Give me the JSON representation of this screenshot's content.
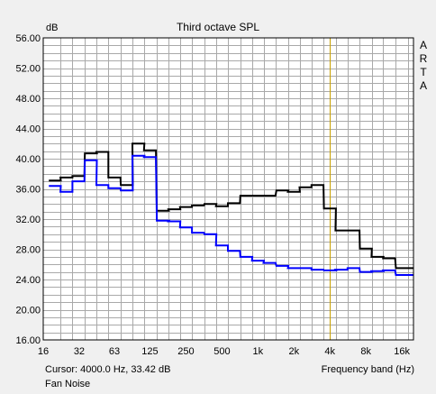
{
  "chart_data": {
    "type": "line",
    "title": "Third octave SPL",
    "units_label": "dB",
    "watermark": "ARTA",
    "x_scale": "log",
    "xlim": [
      16,
      20000
    ],
    "ylim": [
      16.0,
      56.0
    ],
    "y_ticks": [
      "56.00",
      "52.00",
      "48.00",
      "44.00",
      "40.00",
      "36.00",
      "32.00",
      "28.00",
      "24.00",
      "20.00",
      "16.00"
    ],
    "x_ticks": [
      "16",
      "32",
      "63",
      "125",
      "250",
      "500",
      "1k",
      "2k",
      "4k",
      "8k",
      "16k"
    ],
    "x_tick_values": [
      16,
      32,
      63,
      125,
      250,
      500,
      1000,
      2000,
      4000,
      8000,
      16000
    ],
    "xlabel": "Frequency band (Hz)",
    "cursor_readout": "Cursor:  4000.0 Hz, 33.42 dB",
    "cursor_frequency": 4000,
    "caption": "Fan Noise",
    "grid": true,
    "bands": [
      20,
      25,
      31.5,
      40,
      50,
      63,
      80,
      100,
      125,
      160,
      200,
      250,
      315,
      400,
      500,
      630,
      800,
      1000,
      1250,
      1600,
      2000,
      2500,
      3150,
      4000,
      5000,
      6300,
      8000,
      10000,
      12500,
      16000,
      20000
    ],
    "series": [
      {
        "color": "#000000",
        "values": [
          37.1,
          37.5,
          37.7,
          40.7,
          40.9,
          37.5,
          36.5,
          42.0,
          41.1,
          33.1,
          33.3,
          33.6,
          33.8,
          34.0,
          33.7,
          34.1,
          35.1,
          35.1,
          35.1,
          35.8,
          35.6,
          36.2,
          36.5,
          33.4,
          30.5,
          30.5,
          28.1,
          27.0,
          26.8,
          25.5,
          25.5
        ]
      },
      {
        "color": "#0000ff",
        "values": [
          36.4,
          35.6,
          37.0,
          39.8,
          36.5,
          36.1,
          35.8,
          40.4,
          40.2,
          31.8,
          31.7,
          30.9,
          30.2,
          30.0,
          28.5,
          27.8,
          27.0,
          26.5,
          26.2,
          25.8,
          25.5,
          25.5,
          25.3,
          25.2,
          25.3,
          25.5,
          25.0,
          25.1,
          25.2,
          24.6,
          24.6
        ]
      }
    ],
    "plot_bg": "#ffffff",
    "grid_color": "#a9a9a9",
    "cursor_color": "#c8a000"
  }
}
